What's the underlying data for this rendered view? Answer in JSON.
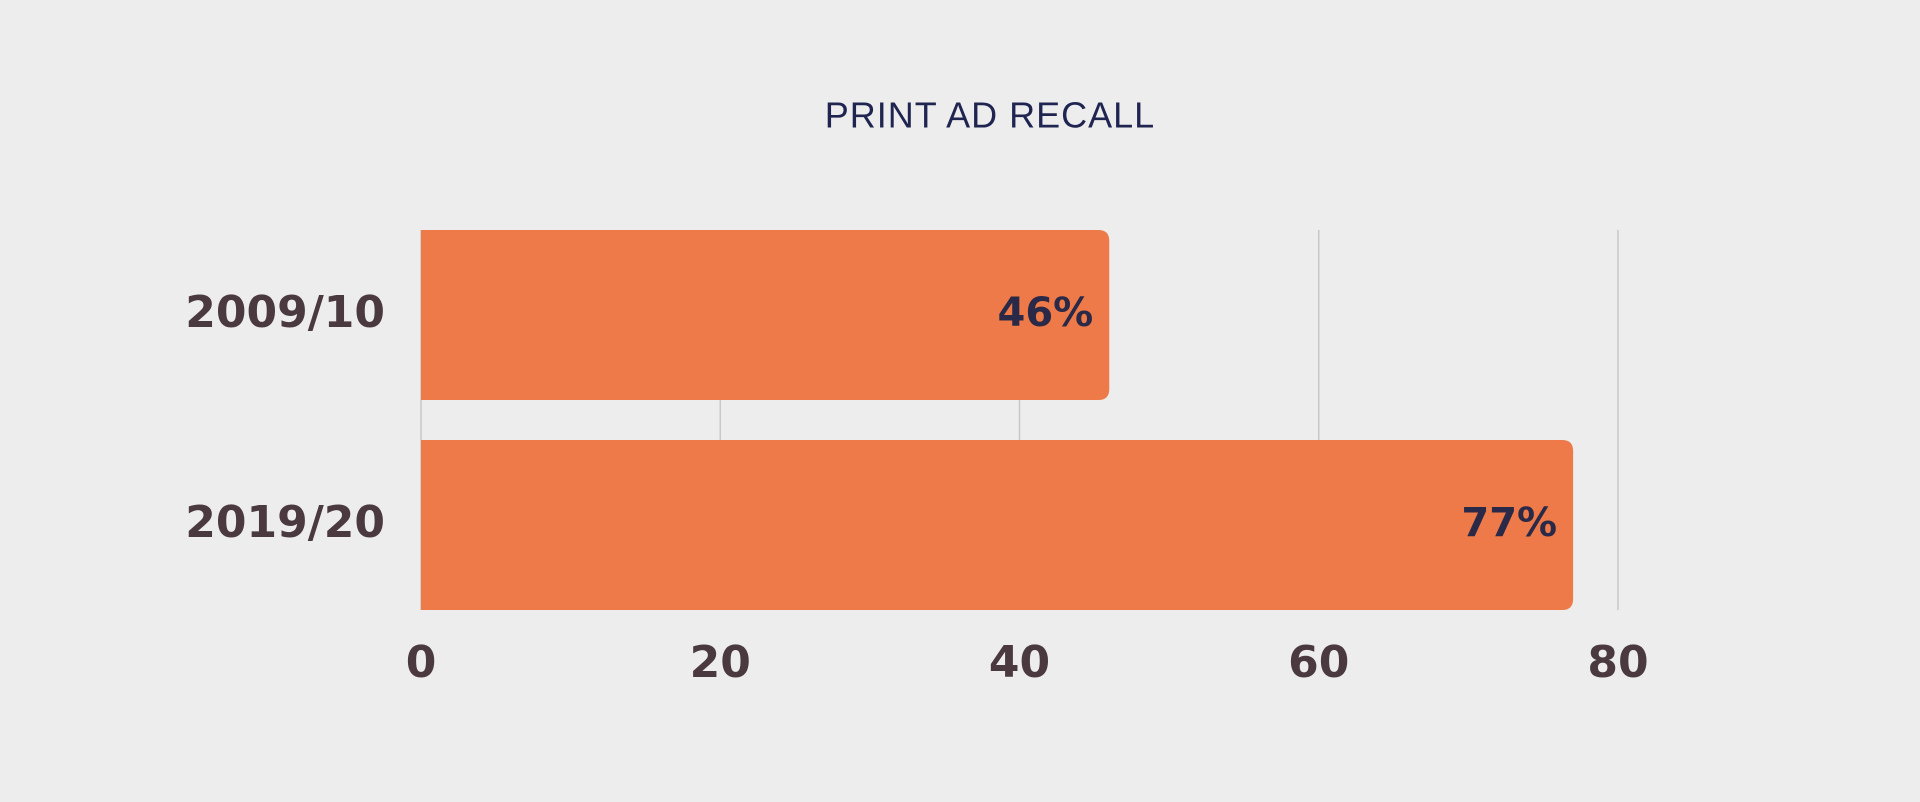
{
  "chart_data": {
    "type": "bar",
    "orientation": "horizontal",
    "title": "PRINT AD RECALL",
    "categories": [
      "2009/10",
      "2019/20"
    ],
    "values": [
      46,
      77
    ],
    "value_labels": [
      "46%",
      "77%"
    ],
    "color": "#ed7a48",
    "xlim": [
      0,
      80
    ],
    "xticks": [
      0,
      20,
      40,
      60,
      80
    ],
    "grid": true
  }
}
